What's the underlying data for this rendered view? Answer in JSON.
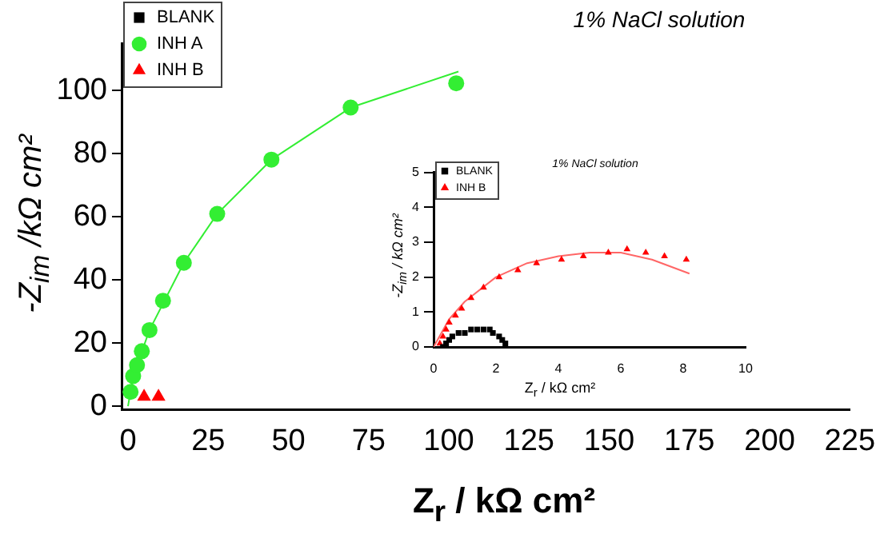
{
  "chart_data": [
    {
      "type": "scatter",
      "title": "1% NaCl solution",
      "xlabel": "Z$_{r}$ / kΩ cm²",
      "ylabel": "-Z$_{im}$ /kΩ cm²",
      "xlim": [
        -2,
        225
      ],
      "xticks": [
        0,
        25,
        50,
        75,
        100,
        125,
        150,
        175,
        200,
        225
      ],
      "ylim": [
        -1,
        115
      ],
      "yticks": [
        0,
        20,
        40,
        60,
        80,
        100
      ],
      "grid": false,
      "legend": "top left",
      "series": [
        {
          "name": "BLANK",
          "color": "#000000",
          "marker": "square"
        },
        {
          "name": "INH A",
          "color": "#33ee33",
          "marker": "circle",
          "x": [
            0.8,
            1.6,
            2.8,
            4.3,
            6.7,
            10.9,
            17.4,
            27.8,
            44.7,
            69.4,
            102.3
          ],
          "values": [
            4.5,
            9.5,
            13,
            17.4,
            24.1,
            33.4,
            45.4,
            60.9,
            78.1,
            94.6,
            102.3
          ]
        },
        {
          "name": "INH B",
          "color": "#ff0000",
          "marker": "triangle",
          "x": [
            5,
            9.5
          ],
          "values": [
            3,
            3
          ]
        },
        {
          "type": "line",
          "color": "#33ee33",
          "marker": "none",
          "x": [
            0,
            1,
            2.8,
            6.7,
            17.4,
            27.8,
            44.7,
            69.4,
            103
          ],
          "values": [
            0,
            6,
            13,
            24.1,
            45.4,
            60.9,
            78.1,
            94.6,
            106
          ]
        }
      ]
    },
    {
      "type": "scatter",
      "title": "1% NaCl solution",
      "xlabel": "Z$_{r}$ / kΩ cm²",
      "ylabel": "-Z$_{im}$ / kΩ cm²",
      "xlim": [
        0,
        10
      ],
      "xticks": [
        0,
        2,
        4,
        6,
        8,
        10
      ],
      "ylim": [
        0,
        5
      ],
      "yticks": [
        0,
        1,
        2,
        3,
        4,
        5
      ],
      "grid": false,
      "legend": "top left",
      "series": [
        {
          "name": "BLANK",
          "color": "#000000",
          "marker": "square",
          "x": [
            0.3,
            0.4,
            0.5,
            0.6,
            0.8,
            1.0,
            1.2,
            1.4,
            1.6,
            1.8,
            1.9,
            2.1,
            2.2,
            2.3
          ],
          "values": [
            0,
            0.1,
            0.2,
            0.3,
            0.4,
            0.4,
            0.5,
            0.5,
            0.5,
            0.5,
            0.4,
            0.3,
            0.2,
            0.1
          ]
        },
        {
          "name": "INH B",
          "color": "#ff0000",
          "marker": "triangle",
          "x": [
            0.2,
            0.3,
            0.4,
            0.5,
            0.7,
            0.9,
            1.2,
            1.6,
            2.1,
            2.7,
            3.3,
            4.1,
            4.8,
            5.6,
            6.2,
            6.8,
            7.4,
            8.1
          ],
          "values": [
            0.1,
            0.3,
            0.5,
            0.7,
            0.9,
            1.1,
            1.4,
            1.7,
            2,
            2.2,
            2.4,
            2.5,
            2.6,
            2.7,
            2.8,
            2.7,
            2.6,
            2.5
          ]
        },
        {
          "type": "line",
          "color": "#ff6666",
          "marker": "none",
          "x": [
            0,
            0.5,
            1,
            2,
            3,
            4,
            5,
            6,
            7,
            8.2
          ],
          "values": [
            0,
            0.8,
            1.3,
            2,
            2.4,
            2.6,
            2.7,
            2.7,
            2.5,
            2.1
          ]
        }
      ]
    }
  ]
}
